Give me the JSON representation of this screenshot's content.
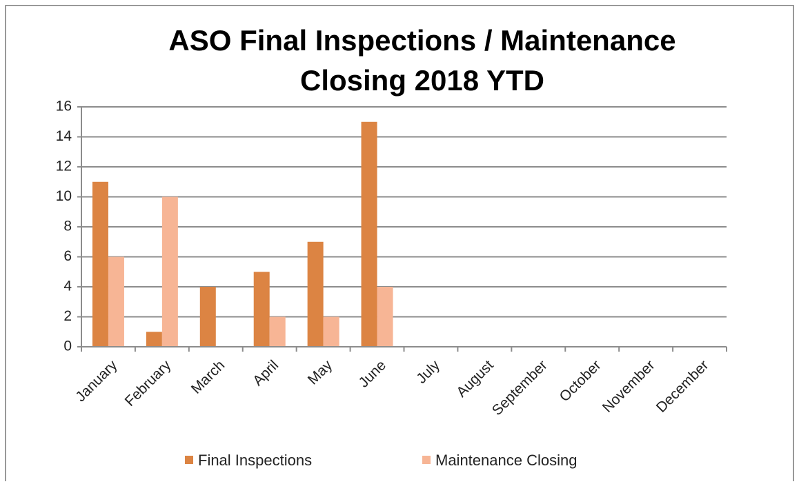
{
  "chart_data": {
    "type": "bar",
    "title": "ASO Final Inspections / Maintenance Closing 2018 YTD",
    "categories": [
      "January",
      "February",
      "March",
      "April",
      "May",
      "June",
      "July",
      "August",
      "September",
      "October",
      "November",
      "December"
    ],
    "series": [
      {
        "name": "Final Inspections",
        "color": "#dc8443",
        "values": [
          11,
          1,
          4,
          5,
          7,
          15,
          null,
          null,
          null,
          null,
          null,
          null
        ]
      },
      {
        "name": "Maintenance Closing",
        "color": "#f7b595",
        "values": [
          6,
          10,
          0,
          2,
          2,
          4,
          null,
          null,
          null,
          null,
          null,
          null
        ]
      }
    ],
    "ylim": [
      0,
      16
    ],
    "yticks": [
      0,
      2,
      4,
      6,
      8,
      10,
      12,
      14,
      16
    ],
    "grid": true,
    "legend": "bottom"
  }
}
